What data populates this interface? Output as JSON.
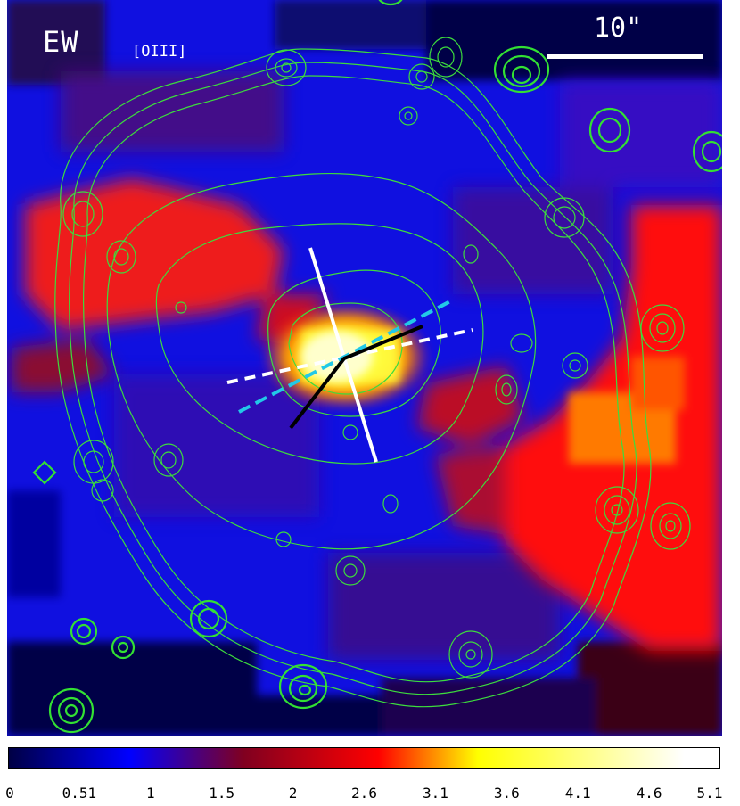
{
  "panel": {
    "title": "EW",
    "subtitle": "[OIII]",
    "scale_label": "10\""
  },
  "colorbar": {
    "ticks": [
      "0",
      "0.51",
      "1",
      "1.5",
      "2",
      "2.6",
      "3.1",
      "3.6",
      "4.1",
      "4.6",
      "5.1"
    ],
    "colors": [
      "#000044",
      "#0000ff",
      "#800020",
      "#ff0000",
      "#ffff00",
      "#ffffff"
    ]
  },
  "colors": {
    "contour": "#3ddc3d",
    "background": "#000040",
    "blue": "#1515ff",
    "red": "#ff1a1a",
    "yellow": "#ffff30",
    "cyan_line": "#22c8e8",
    "white_line": "#ffffff",
    "black_line": "#000000"
  }
}
